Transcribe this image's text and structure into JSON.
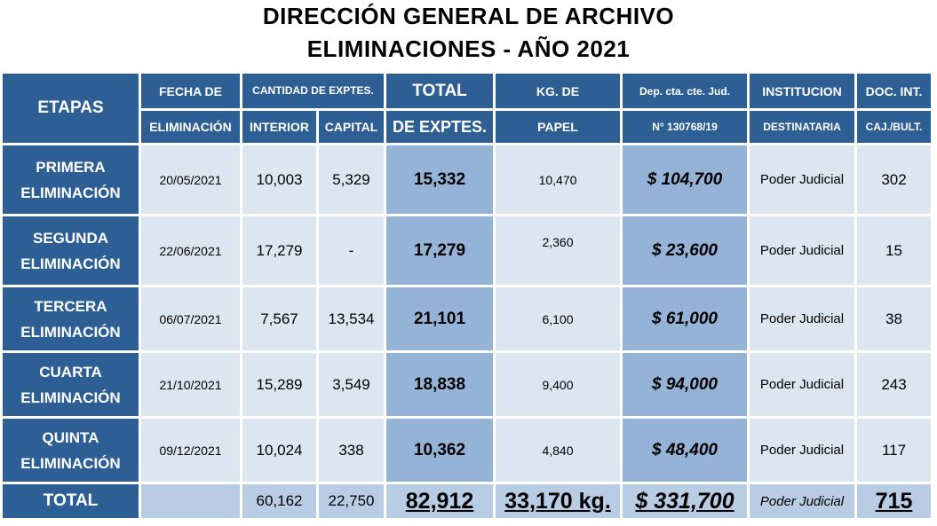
{
  "title": {
    "line1": "DIRECCIÓN  GENERAL  DE  ARCHIVO",
    "line2": "ELIMINACIONES - AÑO  2021"
  },
  "header": {
    "etapas": "ETAPAS",
    "fecha_1": "FECHA DE",
    "fecha_2": "ELIMINACIÓN",
    "cantidad": "CANTIDAD DE EXPTES.",
    "interior": "INTERIOR",
    "capital": "CAPITAL",
    "total_1": "TOTAL",
    "total_2": "DE EXPTES.",
    "kg_1": "KG. DE",
    "kg_2": "PAPEL",
    "dep_1": "Dep. cta. cte. Jud.",
    "dep_2": "N° 130768/19",
    "inst_1": "INSTITUCION",
    "inst_2": "DESTINATARIA",
    "doc_1": "DOC. INT.",
    "doc_2": "CAJ./BULT."
  },
  "rows": [
    {
      "stage_1": "PRIMERA",
      "stage_2": "ELIMINACIÓN",
      "fecha": "20/05/2021",
      "interior": "10,003",
      "capital": "5,329",
      "total": "15,332",
      "kg": "10,470",
      "deposito": "$ 104,700",
      "institucion": "Poder Judicial",
      "doc": "302"
    },
    {
      "stage_1": "SEGUNDA",
      "stage_2": "ELIMINACIÓN",
      "fecha": "22/06/2021",
      "interior": "17,279",
      "capital": "-",
      "total": "17,279",
      "kg": "2,360",
      "deposito": "$ 23,600",
      "institucion": "Poder Judicial",
      "doc": "15"
    },
    {
      "stage_1": "TERCERA",
      "stage_2": "ELIMINACIÓN",
      "fecha": "06/07/2021",
      "interior": "7,567",
      "capital": "13,534",
      "total": "21,101",
      "kg": "6,100",
      "deposito": "$ 61,000",
      "institucion": "Poder Judicial",
      "doc": "38"
    },
    {
      "stage_1": "CUARTA",
      "stage_2": "ELIMINACIÓN",
      "fecha": "21/10/2021",
      "interior": "15,289",
      "capital": "3,549",
      "total": "18,838",
      "kg": "9,400",
      "deposito": "$ 94,000",
      "institucion": "Poder Judicial",
      "doc": "243"
    },
    {
      "stage_1": "QUINTA",
      "stage_2": "ELIMINACIÓN",
      "fecha": "09/12/2021",
      "interior": "10,024",
      "capital": "338",
      "total": "10,362",
      "kg": "4,840",
      "deposito": "$ 48,400",
      "institucion": "Poder Judicial",
      "doc": "117"
    }
  ],
  "totals": {
    "label": "TOTAL",
    "fecha": "",
    "interior": "60,162",
    "capital": "22,750",
    "total": "82,912",
    "kg": "33,170 kg.",
    "deposito": "$ 331,700",
    "institucion": "Poder Judicial",
    "doc": "715"
  },
  "colors": {
    "header_blue": "#2e5f94",
    "light_cell": "#dce6f0",
    "total_cell": "#95b3d7",
    "footer_cell": "#b8cce4"
  }
}
